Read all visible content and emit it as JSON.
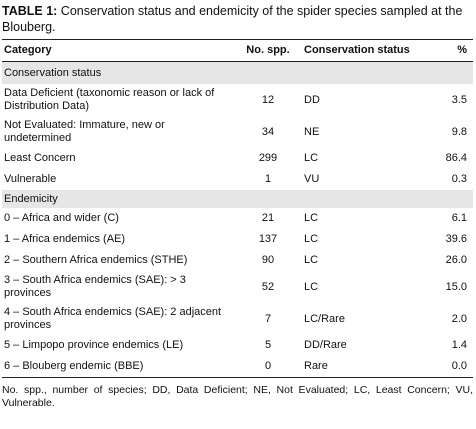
{
  "caption": {
    "label": "TABLE 1:",
    "text": " Conservation status and endemicity of the spider species sampled at the Blouberg."
  },
  "columns": [
    "Category",
    "No. spp.",
    "Conservation status",
    "%"
  ],
  "sections": [
    {
      "title": "Conservation status",
      "rows": [
        {
          "category": "Data Deficient (taxonomic reason or lack of Distribution Data)",
          "spp": "12",
          "status": "DD",
          "pct": "3.5"
        },
        {
          "category": "Not Evaluated: Immature, new or undetermined",
          "spp": "34",
          "status": "NE",
          "pct": "9.8"
        },
        {
          "category": "Least Concern",
          "spp": "299",
          "status": "LC",
          "pct": "86.4"
        },
        {
          "category": "Vulnerable",
          "spp": "1",
          "status": "VU",
          "pct": "0.3"
        }
      ]
    },
    {
      "title": "Endemicity",
      "rows": [
        {
          "category": "0 – Africa and wider (C)",
          "spp": "21",
          "status": "LC",
          "pct": "6.1"
        },
        {
          "category": "1 – Africa endemics (AE)",
          "spp": "137",
          "status": "LC",
          "pct": "39.6"
        },
        {
          "category": "2 – Southern Africa endemics (STHE)",
          "spp": "90",
          "status": "LC",
          "pct": "26.0"
        },
        {
          "category": "3 – South Africa endemics (SAE): > 3 provinces",
          "spp": "52",
          "status": "LC",
          "pct": "15.0"
        },
        {
          "category": "4 – South Africa endemics (SAE): 2 adjacent provinces",
          "spp": "7",
          "status": "LC/Rare",
          "pct": "2.0"
        },
        {
          "category": "5 – Limpopo province endemics (LE)",
          "spp": "5",
          "status": "DD/Rare",
          "pct": "1.4"
        },
        {
          "category": "6 – Blouberg endemic (BBE)",
          "spp": "0",
          "status": "Rare",
          "pct": "0.0"
        }
      ]
    }
  ],
  "footnote": "No. spp., number of species; DD, Data Deficient; NE, Not Evaluated; LC, Least Concern; VU, Vulnerable."
}
